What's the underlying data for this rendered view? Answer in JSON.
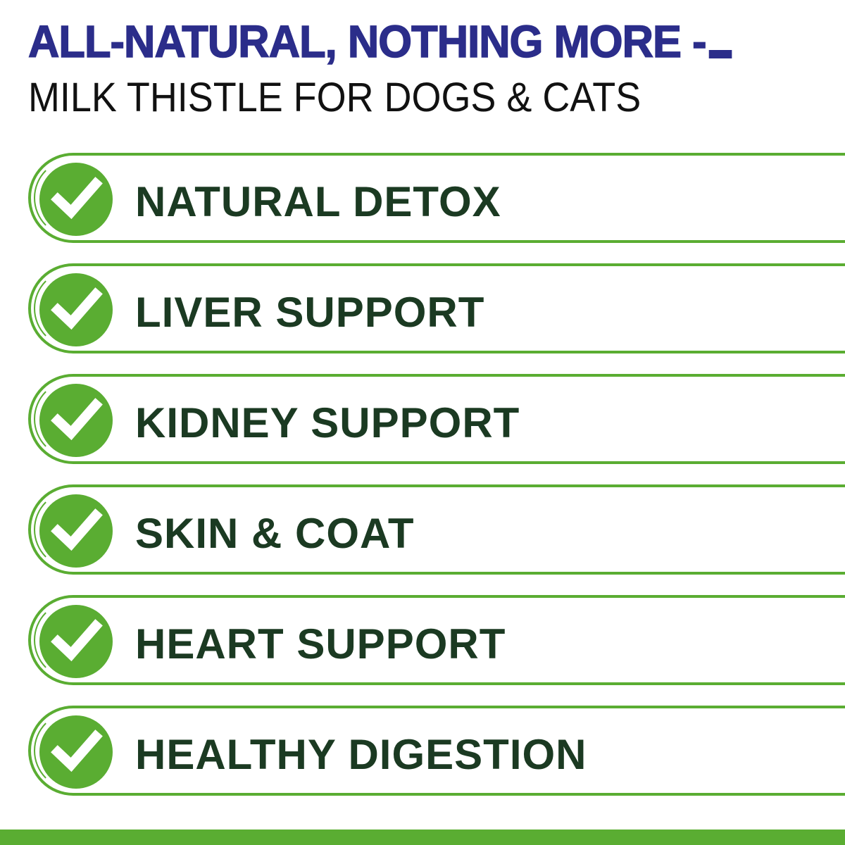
{
  "header": {
    "title": "ALL-NATURAL, NOTHING MORE -",
    "subtitle": "MILK THISTLE FOR DOGS & CATS"
  },
  "benefits": [
    {
      "label": "NATURAL DETOX",
      "icon": "check-circle-icon"
    },
    {
      "label": "LIVER SUPPORT",
      "icon": "check-circle-icon"
    },
    {
      "label": "KIDNEY SUPPORT",
      "icon": "check-circle-icon"
    },
    {
      "label": "SKIN & COAT",
      "icon": "check-circle-icon"
    },
    {
      "label": "HEART SUPPORT",
      "icon": "check-circle-icon"
    },
    {
      "label": "HEALTHY DIGESTION",
      "icon": "check-circle-icon"
    }
  ],
  "colors": {
    "title": "#2b2d8a",
    "accent_green": "#5aad32",
    "label": "#1b3a22"
  }
}
